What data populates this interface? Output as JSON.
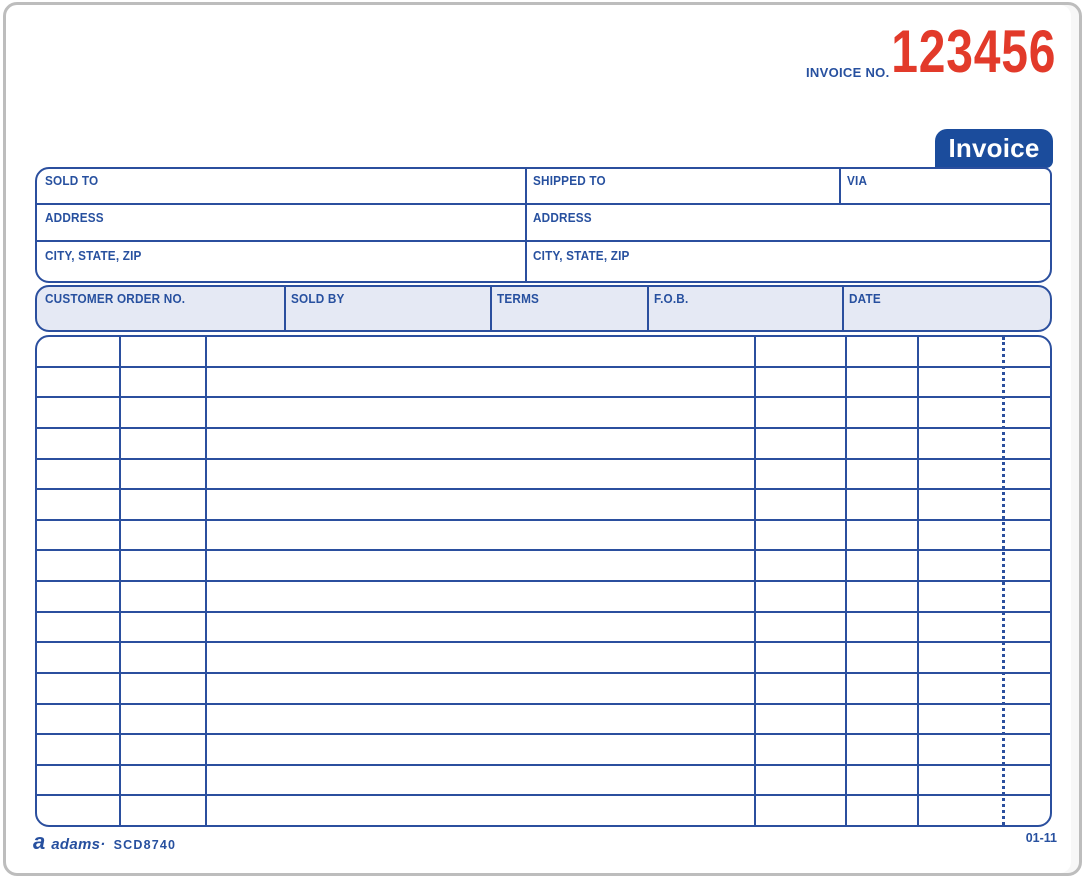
{
  "header": {
    "invoice_no_label": "INVOICE NO.",
    "invoice_number": "123456",
    "badge_label": "Invoice"
  },
  "address_block": {
    "sold_to_label": "SOLD TO",
    "shipped_to_label": "SHIPPED TO",
    "via_label": "VIA",
    "address_left_label": "ADDRESS",
    "address_right_label": "ADDRESS",
    "city_state_zip_left_label": "CITY, STATE, ZIP",
    "city_state_zip_right_label": "CITY, STATE, ZIP"
  },
  "order_band": {
    "columns": [
      "CUSTOMER ORDER NO.",
      "SOLD BY",
      "TERMS",
      "F.O.B.",
      "DATE"
    ]
  },
  "line_items_table": {
    "row_count": 16,
    "column_count": 6,
    "has_dotted_cents_rule": true
  },
  "footer": {
    "logo_glyph": "a",
    "logo_icon": "adams-a-logo",
    "brand": "adams·",
    "model": "SCD8740",
    "revision": "01-11"
  },
  "colors": {
    "form_line_blue": "#2b4f9e",
    "label_blue": "#27509f",
    "badge_blue": "#1b4c9c",
    "band_fill": "#e5e9f4",
    "invoice_number_red": "#e23a2a",
    "pad_edge_gray": "#bdbdbd"
  }
}
